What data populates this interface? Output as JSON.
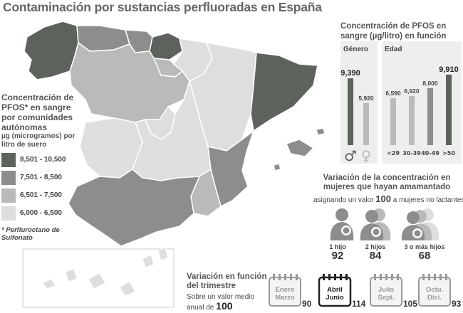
{
  "title": "Contaminación por sustancias perfluoradas en España",
  "legend": {
    "title": "Concentración de PFOS* en sangre por comunidades autónomas",
    "units": "µg (microgramos) por litro de suero",
    "items": [
      {
        "label": "8,501 - 10,500",
        "color": "#5e625d"
      },
      {
        "label": "7,501 - 8,500",
        "color": "#8d8d8b"
      },
      {
        "label": "6,501 - 7,500",
        "color": "#bababa"
      },
      {
        "label": "6,000 - 6,500",
        "color": "#dedede"
      }
    ],
    "footnote": "* Perfluroctano de Sulfonato"
  },
  "chart_data": [
    {
      "type": "bar",
      "title": "Concentración de PFOS en sangre (µg/litro) en función de...",
      "panel": "Género",
      "categories": [
        "♂",
        "♀"
      ],
      "values": [
        9.39,
        5.92
      ],
      "value_labels": [
        "9,390",
        "5,920"
      ],
      "colors": [
        "#5e625d",
        "#bababa"
      ],
      "ylim": [
        0,
        11
      ]
    },
    {
      "type": "bar",
      "panel": "Edad",
      "categories": [
        "<29",
        "30-39",
        "40-49",
        ">50"
      ],
      "values": [
        6.59,
        6.92,
        8.0,
        9.91
      ],
      "value_labels": [
        "6,590",
        "6,920",
        "8,000",
        "9,910"
      ],
      "colors": [
        "#bababa",
        "#bababa",
        "#8d8d8b",
        "#5e625d"
      ],
      "ylim": [
        0,
        11
      ]
    }
  ],
  "lactation": {
    "title": "Variación de la concentración en mujeres que hayan amamantado",
    "subtitle_pre": "asignando un valor",
    "subtitle_num": "100",
    "subtitle_post": "a mujeres no lactantes",
    "groups": [
      {
        "label": "1 hijo",
        "value": "92",
        "children": 1
      },
      {
        "label": "2 hijos",
        "value": "84",
        "children": 2
      },
      {
        "label": "3 o más hijos",
        "value": "68",
        "children": 3
      }
    ]
  },
  "trimester": {
    "title": "Variación en función del trimestre",
    "sub_pre": "Sobre un valor medio anual de",
    "sub_num": "100",
    "items": [
      {
        "label1": "Enero",
        "label2": "Marzo",
        "value": "90",
        "highlight": false
      },
      {
        "label1": "Abril",
        "label2": "Junio",
        "value": "114",
        "highlight": true
      },
      {
        "label1": "Julio",
        "label2": "Sept.",
        "value": "105",
        "highlight": false
      },
      {
        "label1": "Octu.",
        "label2": "Dici.",
        "value": "93",
        "highlight": false
      }
    ]
  }
}
